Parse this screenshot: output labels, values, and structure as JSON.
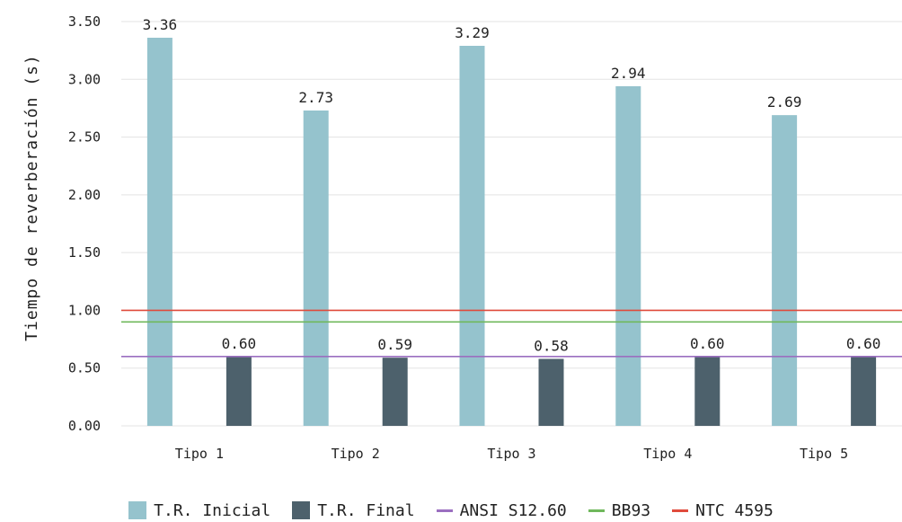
{
  "chart_data": {
    "type": "bar",
    "categories": [
      "Tipo 1",
      "Tipo 2",
      "Tipo 3",
      "Tipo 4",
      "Tipo 5"
    ],
    "series": [
      {
        "name": "T.R. Inicial",
        "values": [
          3.36,
          2.73,
          3.29,
          2.94,
          2.69
        ],
        "color": "#95c3cd",
        "data_labels": [
          "3.36",
          "2.73",
          "3.29",
          "2.94",
          "2.69"
        ]
      },
      {
        "name": "T.R. Final",
        "values": [
          0.6,
          0.59,
          0.58,
          0.6,
          0.6
        ],
        "color": "#4d616c",
        "data_labels": [
          "0.60",
          "0.59",
          "0.58",
          "0.60",
          "0.60"
        ]
      }
    ],
    "reference_lines": [
      {
        "name": "ANSI S12.60",
        "value": 0.6,
        "color": "#9b6fc0"
      },
      {
        "name": "BB93",
        "value": 0.9,
        "color": "#70b85c"
      },
      {
        "name": "NTC 4595",
        "value": 1.0,
        "color": "#e04b3c"
      }
    ],
    "ylabel": "Tiempo de reverberación (s)",
    "xlabel": "",
    "ylim": [
      0,
      3.5
    ],
    "yticks": [
      "0.00",
      "0.50",
      "1.00",
      "1.50",
      "2.00",
      "2.50",
      "3.00",
      "3.50"
    ],
    "grid": "horizontal",
    "legend_position": "bottom"
  }
}
